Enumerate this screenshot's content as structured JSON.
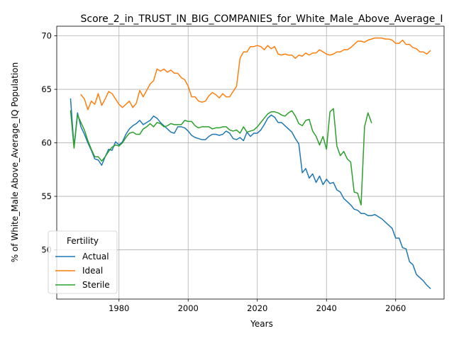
{
  "chart_data": {
    "type": "line",
    "title": "Score_2_in_TRUST_IN_BIG_COMPANIES_for_White_Male_Above_Average_I",
    "xlabel": "Years",
    "ylabel": "% of White_Male Above_Average_IQ Population",
    "xlim": [
      1962,
      2074
    ],
    "ylim": [
      45.4,
      70.9
    ],
    "xticks": [
      1980,
      2000,
      2020,
      2040,
      2060
    ],
    "yticks": [
      50,
      55,
      60,
      65,
      70
    ],
    "grid": true,
    "legend": {
      "title": "Fertility",
      "position": "lower-left"
    },
    "series": [
      {
        "name": "Actual",
        "color": "#1f77b4",
        "points": [
          [
            1966,
            64.1
          ],
          [
            1967,
            59.6
          ],
          [
            1968,
            62.8
          ],
          [
            1969,
            61.5
          ],
          [
            1970,
            60.8
          ],
          [
            1971,
            60.0
          ],
          [
            1972,
            59.3
          ],
          [
            1973,
            58.5
          ],
          [
            1974,
            58.4
          ],
          [
            1975,
            57.9
          ],
          [
            1976,
            58.7
          ],
          [
            1977,
            59.4
          ],
          [
            1978,
            59.3
          ],
          [
            1979,
            60.1
          ],
          [
            1980,
            59.8
          ],
          [
            1981,
            60.1
          ],
          [
            1982,
            60.8
          ],
          [
            1983,
            61.3
          ],
          [
            1984,
            61.6
          ],
          [
            1985,
            61.8
          ],
          [
            1986,
            62.1
          ],
          [
            1987,
            61.7
          ],
          [
            1988,
            61.9
          ],
          [
            1989,
            62.1
          ],
          [
            1990,
            62.5
          ],
          [
            1991,
            62.3
          ],
          [
            1992,
            61.9
          ],
          [
            1993,
            61.6
          ],
          [
            1994,
            61.3
          ],
          [
            1995,
            61.0
          ],
          [
            1996,
            60.9
          ],
          [
            1997,
            61.5
          ],
          [
            1998,
            61.5
          ],
          [
            1999,
            61.4
          ],
          [
            2000,
            61.1
          ],
          [
            2001,
            60.7
          ],
          [
            2002,
            60.5
          ],
          [
            2003,
            60.4
          ],
          [
            2004,
            60.3
          ],
          [
            2005,
            60.3
          ],
          [
            2006,
            60.6
          ],
          [
            2007,
            60.8
          ],
          [
            2008,
            60.8
          ],
          [
            2009,
            60.7
          ],
          [
            2010,
            60.8
          ],
          [
            2011,
            61.1
          ],
          [
            2012,
            60.9
          ],
          [
            2013,
            60.4
          ],
          [
            2014,
            60.3
          ],
          [
            2015,
            60.5
          ],
          [
            2016,
            60.2
          ],
          [
            2017,
            61.0
          ],
          [
            2018,
            60.6
          ],
          [
            2019,
            60.9
          ],
          [
            2020,
            60.9
          ],
          [
            2021,
            61.2
          ],
          [
            2022,
            61.7
          ],
          [
            2023,
            62.3
          ],
          [
            2024,
            62.6
          ],
          [
            2025,
            62.4
          ],
          [
            2026,
            61.9
          ],
          [
            2027,
            61.9
          ],
          [
            2028,
            61.6
          ],
          [
            2029,
            61.3
          ],
          [
            2030,
            61.0
          ],
          [
            2031,
            60.4
          ],
          [
            2032,
            59.9
          ],
          [
            2033,
            57.2
          ],
          [
            2034,
            57.6
          ],
          [
            2035,
            56.7
          ],
          [
            2036,
            57.1
          ],
          [
            2037,
            56.3
          ],
          [
            2038,
            56.9
          ],
          [
            2039,
            56.1
          ],
          [
            2040,
            56.6
          ],
          [
            2041,
            56.2
          ],
          [
            2042,
            56.3
          ],
          [
            2043,
            55.6
          ],
          [
            2044,
            55.4
          ],
          [
            2045,
            54.8
          ],
          [
            2046,
            54.5
          ],
          [
            2047,
            54.2
          ],
          [
            2048,
            53.8
          ],
          [
            2049,
            53.7
          ],
          [
            2050,
            53.4
          ],
          [
            2051,
            53.4
          ],
          [
            2052,
            53.2
          ],
          [
            2053,
            53.2
          ],
          [
            2054,
            53.3
          ],
          [
            2055,
            53.1
          ],
          [
            2056,
            52.9
          ],
          [
            2057,
            52.6
          ],
          [
            2058,
            52.3
          ],
          [
            2059,
            52.0
          ],
          [
            2060,
            51.1
          ],
          [
            2061,
            51.1
          ],
          [
            2062,
            50.2
          ],
          [
            2063,
            50.1
          ],
          [
            2064,
            48.9
          ],
          [
            2065,
            48.6
          ],
          [
            2066,
            47.7
          ],
          [
            2067,
            47.4
          ],
          [
            2068,
            47.1
          ],
          [
            2069,
            46.7
          ],
          [
            2070,
            46.4
          ]
        ]
      },
      {
        "name": "Ideal",
        "color": "#ff7f0e",
        "points": [
          [
            1969,
            64.5
          ],
          [
            1970,
            64.1
          ],
          [
            1971,
            63.1
          ],
          [
            1972,
            63.9
          ],
          [
            1973,
            63.6
          ],
          [
            1974,
            64.6
          ],
          [
            1975,
            63.5
          ],
          [
            1976,
            64.1
          ],
          [
            1977,
            64.8
          ],
          [
            1978,
            64.6
          ],
          [
            1979,
            64.1
          ],
          [
            1980,
            63.6
          ],
          [
            1981,
            63.3
          ],
          [
            1982,
            63.6
          ],
          [
            1983,
            63.9
          ],
          [
            1984,
            63.3
          ],
          [
            1985,
            63.7
          ],
          [
            1986,
            64.9
          ],
          [
            1987,
            64.3
          ],
          [
            1988,
            64.9
          ],
          [
            1989,
            65.5
          ],
          [
            1990,
            65.8
          ],
          [
            1991,
            66.9
          ],
          [
            1992,
            66.7
          ],
          [
            1993,
            66.9
          ],
          [
            1994,
            66.6
          ],
          [
            1995,
            66.8
          ],
          [
            1996,
            66.5
          ],
          [
            1997,
            66.5
          ],
          [
            1998,
            66.1
          ],
          [
            1999,
            65.9
          ],
          [
            2000,
            65.3
          ],
          [
            2001,
            64.3
          ],
          [
            2002,
            64.3
          ],
          [
            2003,
            63.9
          ],
          [
            2004,
            63.8
          ],
          [
            2005,
            63.9
          ],
          [
            2006,
            64.4
          ],
          [
            2007,
            64.7
          ],
          [
            2008,
            64.5
          ],
          [
            2009,
            64.2
          ],
          [
            2010,
            64.6
          ],
          [
            2011,
            64.3
          ],
          [
            2012,
            64.3
          ],
          [
            2013,
            64.8
          ],
          [
            2014,
            65.3
          ],
          [
            2015,
            67.9
          ],
          [
            2016,
            68.5
          ],
          [
            2017,
            68.5
          ],
          [
            2018,
            69.0
          ],
          [
            2019,
            69.0
          ],
          [
            2020,
            69.1
          ],
          [
            2021,
            69.0
          ],
          [
            2022,
            68.7
          ],
          [
            2023,
            69.1
          ],
          [
            2024,
            68.8
          ],
          [
            2025,
            69.0
          ],
          [
            2026,
            68.3
          ],
          [
            2027,
            68.2
          ],
          [
            2028,
            68.3
          ],
          [
            2029,
            68.2
          ],
          [
            2030,
            68.2
          ],
          [
            2031,
            67.9
          ],
          [
            2032,
            68.2
          ],
          [
            2033,
            68.1
          ],
          [
            2034,
            68.4
          ],
          [
            2035,
            68.2
          ],
          [
            2036,
            68.4
          ],
          [
            2037,
            68.4
          ],
          [
            2038,
            68.7
          ],
          [
            2039,
            68.5
          ],
          [
            2040,
            68.3
          ],
          [
            2041,
            68.2
          ],
          [
            2042,
            68.3
          ],
          [
            2043,
            68.5
          ],
          [
            2044,
            68.5
          ],
          [
            2045,
            68.7
          ],
          [
            2046,
            68.7
          ],
          [
            2047,
            68.9
          ],
          [
            2048,
            69.2
          ],
          [
            2049,
            69.5
          ],
          [
            2050,
            69.5
          ],
          [
            2051,
            69.4
          ],
          [
            2052,
            69.6
          ],
          [
            2053,
            69.7
          ],
          [
            2054,
            69.8
          ],
          [
            2055,
            69.8
          ],
          [
            2056,
            69.8
          ],
          [
            2057,
            69.7
          ],
          [
            2058,
            69.7
          ],
          [
            2059,
            69.6
          ],
          [
            2060,
            69.3
          ],
          [
            2061,
            69.3
          ],
          [
            2062,
            69.6
          ],
          [
            2063,
            69.2
          ],
          [
            2064,
            69.2
          ],
          [
            2065,
            68.9
          ],
          [
            2066,
            68.8
          ],
          [
            2067,
            68.5
          ],
          [
            2068,
            68.5
          ],
          [
            2069,
            68.3
          ],
          [
            2070,
            68.6
          ]
        ]
      },
      {
        "name": "Sterile",
        "color": "#2ca02c",
        "points": [
          [
            1966,
            63.0
          ],
          [
            1967,
            59.5
          ],
          [
            1968,
            62.6
          ],
          [
            1969,
            61.9
          ],
          [
            1970,
            61.2
          ],
          [
            1971,
            60.2
          ],
          [
            1972,
            59.4
          ],
          [
            1973,
            58.7
          ],
          [
            1974,
            58.7
          ],
          [
            1975,
            58.3
          ],
          [
            1976,
            58.7
          ],
          [
            1977,
            59.2
          ],
          [
            1978,
            59.6
          ],
          [
            1979,
            59.8
          ],
          [
            1980,
            59.7
          ],
          [
            1981,
            60.0
          ],
          [
            1982,
            60.5
          ],
          [
            1983,
            60.9
          ],
          [
            1984,
            61.0
          ],
          [
            1985,
            60.8
          ],
          [
            1986,
            60.8
          ],
          [
            1987,
            61.3
          ],
          [
            1988,
            61.5
          ],
          [
            1989,
            61.8
          ],
          [
            1990,
            61.5
          ],
          [
            1991,
            61.9
          ],
          [
            1992,
            61.8
          ],
          [
            1993,
            61.5
          ],
          [
            1994,
            61.6
          ],
          [
            1995,
            61.8
          ],
          [
            1996,
            61.7
          ],
          [
            1997,
            61.7
          ],
          [
            1998,
            61.7
          ],
          [
            1999,
            62.1
          ],
          [
            2000,
            62.0
          ],
          [
            2001,
            62.0
          ],
          [
            2002,
            61.6
          ],
          [
            2003,
            61.4
          ],
          [
            2004,
            61.5
          ],
          [
            2005,
            61.5
          ],
          [
            2006,
            61.5
          ],
          [
            2007,
            61.3
          ],
          [
            2008,
            61.4
          ],
          [
            2009,
            61.4
          ],
          [
            2010,
            61.5
          ],
          [
            2011,
            61.5
          ],
          [
            2012,
            61.2
          ],
          [
            2013,
            61.1
          ],
          [
            2014,
            61.2
          ],
          [
            2015,
            60.9
          ],
          [
            2016,
            61.5
          ],
          [
            2017,
            61.0
          ],
          [
            2018,
            61.1
          ],
          [
            2019,
            61.2
          ],
          [
            2020,
            61.5
          ],
          [
            2021,
            61.9
          ],
          [
            2022,
            62.3
          ],
          [
            2023,
            62.7
          ],
          [
            2024,
            62.9
          ],
          [
            2025,
            62.9
          ],
          [
            2026,
            62.8
          ],
          [
            2027,
            62.6
          ],
          [
            2028,
            62.5
          ],
          [
            2029,
            62.8
          ],
          [
            2030,
            63.0
          ],
          [
            2031,
            62.5
          ],
          [
            2032,
            61.8
          ],
          [
            2033,
            61.6
          ],
          [
            2034,
            62.1
          ],
          [
            2035,
            62.2
          ],
          [
            2036,
            61.1
          ],
          [
            2037,
            60.6
          ],
          [
            2038,
            59.8
          ],
          [
            2039,
            60.6
          ],
          [
            2040,
            59.4
          ],
          [
            2041,
            62.9
          ],
          [
            2042,
            63.2
          ],
          [
            2043,
            59.7
          ],
          [
            2044,
            58.8
          ],
          [
            2045,
            59.2
          ],
          [
            2046,
            58.5
          ],
          [
            2047,
            58.2
          ],
          [
            2048,
            55.4
          ],
          [
            2049,
            55.3
          ],
          [
            2050,
            54.2
          ],
          [
            2051,
            61.5
          ],
          [
            2052,
            62.8
          ],
          [
            2053,
            61.9
          ]
        ]
      }
    ]
  }
}
